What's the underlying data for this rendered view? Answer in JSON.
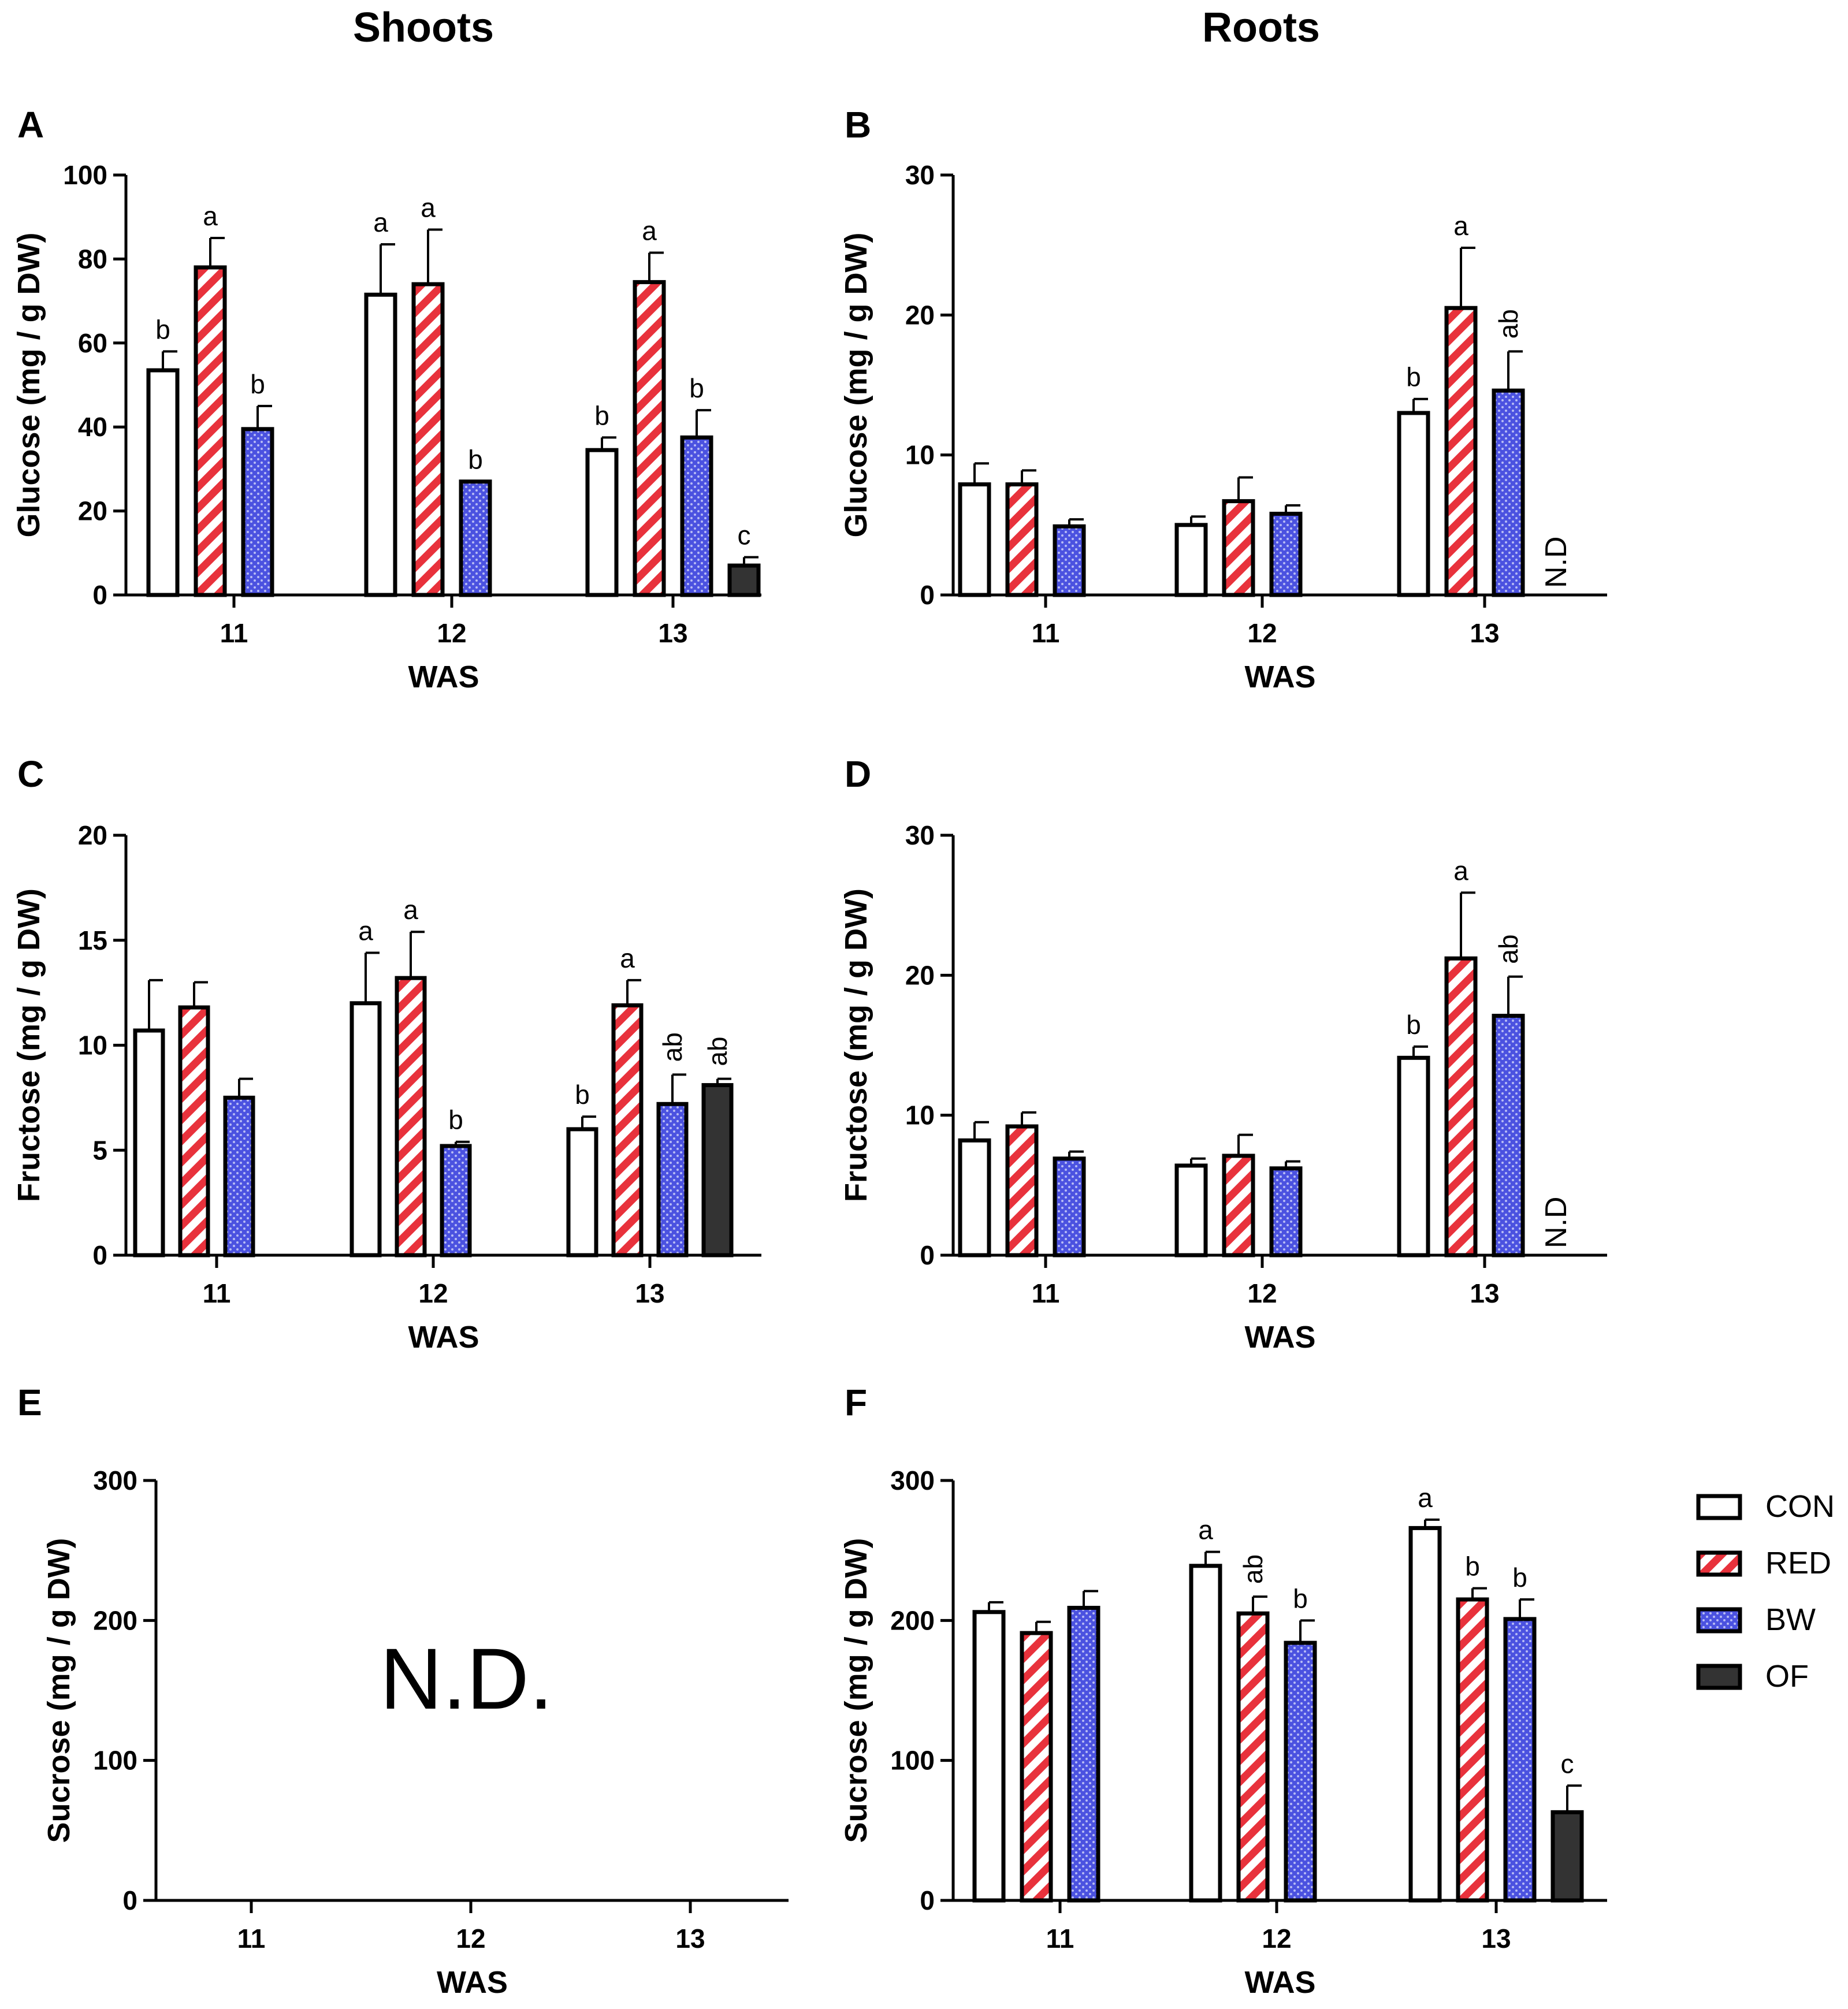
{
  "headings": {
    "shoots": "Shoots",
    "roots": "Roots"
  },
  "colors": {
    "CON": "#ffffff",
    "RED": "#e8323c",
    "BW": "#4b52e0",
    "OF": "#333333",
    "outline": "#000000"
  },
  "legend": [
    {
      "key": "CON",
      "label": "CON",
      "pattern": "plain"
    },
    {
      "key": "RED",
      "label": "RED",
      "pattern": "stripes"
    },
    {
      "key": "BW",
      "label": "BW",
      "pattern": "dots"
    },
    {
      "key": "OF",
      "label": "OF",
      "pattern": "solid"
    }
  ],
  "chart_data": [
    {
      "panel": "A",
      "type": "bar",
      "column": "Shoots",
      "ylabel": "Glucose (mg / g DW)",
      "xlabel": "WAS",
      "ylim": [
        0,
        100
      ],
      "yticks": [
        0,
        20,
        40,
        60,
        80,
        100
      ],
      "categories": [
        "11",
        "12",
        "13"
      ],
      "series": [
        {
          "name": "CON",
          "values": [
            53.5,
            71.5,
            34.5
          ],
          "errors": [
            4.5,
            12,
            3
          ],
          "sig": [
            "b",
            "a",
            "b"
          ]
        },
        {
          "name": "RED",
          "values": [
            78,
            74,
            74.5
          ],
          "errors": [
            7,
            13,
            7
          ],
          "sig": [
            "a",
            "a",
            "a"
          ]
        },
        {
          "name": "BW",
          "values": [
            39.5,
            27,
            37.5
          ],
          "errors": [
            5.5,
            0,
            6.5
          ],
          "sig": [
            "b",
            "b",
            "b"
          ]
        },
        {
          "name": "OF",
          "values": [
            null,
            null,
            7
          ],
          "errors": [
            null,
            null,
            2
          ],
          "sig": [
            "",
            "",
            "c"
          ]
        }
      ]
    },
    {
      "panel": "B",
      "type": "bar",
      "column": "Roots",
      "ylabel": "Glucose (mg / g DW)",
      "xlabel": "WAS",
      "ylim": [
        0,
        30
      ],
      "yticks": [
        0,
        10,
        20,
        30
      ],
      "categories": [
        "11",
        "12",
        "13"
      ],
      "series": [
        {
          "name": "CON",
          "values": [
            7.9,
            5,
            13
          ],
          "errors": [
            1.5,
            0.6,
            1
          ],
          "sig": [
            "",
            "",
            "b"
          ]
        },
        {
          "name": "RED",
          "values": [
            7.9,
            6.7,
            20.5
          ],
          "errors": [
            1,
            1.7,
            4.3
          ],
          "sig": [
            "",
            "",
            "a"
          ]
        },
        {
          "name": "BW",
          "values": [
            4.9,
            5.8,
            14.6
          ],
          "errors": [
            0.5,
            0.6,
            2.8
          ],
          "sig": [
            "",
            "",
            "ab"
          ]
        },
        {
          "name": "OF",
          "values": [
            null,
            null,
            null
          ],
          "errors": [
            null,
            null,
            null
          ],
          "sig": [
            "",
            "",
            ""
          ]
        }
      ],
      "annotation": "N.D"
    },
    {
      "panel": "C",
      "type": "bar",
      "column": "Shoots",
      "ylabel": "Fructose (mg / g DW)",
      "xlabel": "WAS",
      "ylim": [
        0,
        20
      ],
      "yticks": [
        0,
        5,
        10,
        15,
        20
      ],
      "categories": [
        "11",
        "12",
        "13"
      ],
      "series": [
        {
          "name": "CON",
          "values": [
            10.7,
            12,
            6
          ],
          "errors": [
            2.4,
            2.4,
            0.6
          ],
          "sig": [
            "",
            "a",
            "b"
          ]
        },
        {
          "name": "RED",
          "values": [
            11.8,
            13.2,
            11.9
          ],
          "errors": [
            1.2,
            2.2,
            1.2
          ],
          "sig": [
            "",
            "a",
            "a"
          ]
        },
        {
          "name": "BW",
          "values": [
            7.5,
            5.2,
            7.2
          ],
          "errors": [
            0.9,
            0.2,
            1.4
          ],
          "sig": [
            "",
            "b",
            "ab"
          ]
        },
        {
          "name": "OF",
          "values": [
            null,
            null,
            8.1
          ],
          "errors": [
            null,
            null,
            0.3
          ],
          "sig": [
            "",
            "",
            "ab"
          ]
        }
      ]
    },
    {
      "panel": "D",
      "type": "bar",
      "column": "Roots",
      "ylabel": "Fructose (mg / g DW)",
      "xlabel": "WAS",
      "ylim": [
        0,
        30
      ],
      "yticks": [
        0,
        10,
        20,
        30
      ],
      "categories": [
        "11",
        "12",
        "13"
      ],
      "series": [
        {
          "name": "CON",
          "values": [
            8.2,
            6.4,
            14.1
          ],
          "errors": [
            1.3,
            0.5,
            0.8
          ],
          "sig": [
            "",
            "",
            "b"
          ]
        },
        {
          "name": "RED",
          "values": [
            9.2,
            7.1,
            21.2
          ],
          "errors": [
            1,
            1.5,
            4.7
          ],
          "sig": [
            "",
            "",
            "a"
          ]
        },
        {
          "name": "BW",
          "values": [
            6.9,
            6.2,
            17.1
          ],
          "errors": [
            0.5,
            0.5,
            2.8
          ],
          "sig": [
            "",
            "",
            "ab"
          ]
        },
        {
          "name": "OF",
          "values": [
            null,
            null,
            null
          ],
          "errors": [
            null,
            null,
            null
          ],
          "sig": [
            "",
            "",
            ""
          ]
        }
      ],
      "annotation": "N.D"
    },
    {
      "panel": "E",
      "type": "bar",
      "column": "Shoots",
      "ylabel": "Sucrose (mg / g DW)",
      "xlabel": "WAS",
      "ylim": [
        0,
        300
      ],
      "yticks": [
        0,
        100,
        200,
        300
      ],
      "categories": [
        "11",
        "12",
        "13"
      ],
      "series": [],
      "annotation": "N.D."
    },
    {
      "panel": "F",
      "type": "bar",
      "column": "Roots",
      "ylabel": "Sucrose (mg / g DW)",
      "xlabel": "WAS",
      "ylim": [
        0,
        300
      ],
      "yticks": [
        0,
        100,
        200,
        300
      ],
      "categories": [
        "11",
        "12",
        "13"
      ],
      "series": [
        {
          "name": "CON",
          "values": [
            206,
            239,
            266
          ],
          "errors": [
            7,
            10,
            6
          ],
          "sig": [
            "",
            "a",
            "a"
          ]
        },
        {
          "name": "RED",
          "values": [
            191,
            205,
            215
          ],
          "errors": [
            8,
            12,
            8
          ],
          "sig": [
            "",
            "ab",
            "b"
          ]
        },
        {
          "name": "BW",
          "values": [
            209,
            184,
            201
          ],
          "errors": [
            12,
            16,
            14
          ],
          "sig": [
            "",
            "b",
            "b"
          ]
        },
        {
          "name": "OF",
          "values": [
            null,
            null,
            63
          ],
          "errors": [
            null,
            null,
            19
          ],
          "sig": [
            "",
            "",
            "c"
          ]
        }
      ]
    }
  ]
}
